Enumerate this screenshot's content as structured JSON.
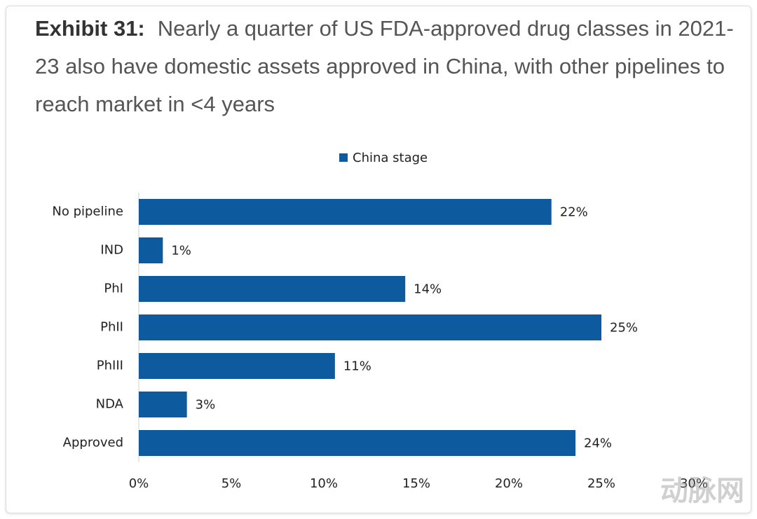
{
  "chart_data": {
    "type": "barh",
    "title_label": "Exhibit 31:",
    "title": "Nearly a quarter of US FDA-approved drug classes in 2021-23 also have domestic assets approved in China, with other pipelines to reach market in <4 years",
    "categories": [
      "No pipeline",
      "IND",
      "PhI",
      "PhII",
      "PhIII",
      "NDA",
      "Approved"
    ],
    "series": [
      {
        "name": "China stage",
        "color": "#0e5a9e",
        "values": [
          22.3,
          1.3,
          14.4,
          25,
          10.6,
          2.6,
          23.6
        ],
        "value_labels": [
          "22%",
          "1%",
          "14%",
          "25%",
          "11%",
          "3%",
          "24%"
        ]
      }
    ],
    "xlim": [
      0,
      30
    ],
    "xticks": [
      {
        "value": 0,
        "label": "0%"
      },
      {
        "value": 5,
        "label": "5%"
      },
      {
        "value": 10,
        "label": "10%"
      },
      {
        "value": 15,
        "label": "15%"
      },
      {
        "value": 20,
        "label": "20%"
      },
      {
        "value": 25,
        "label": "25%"
      },
      {
        "value": 30,
        "label": "30%"
      }
    ],
    "grid": false,
    "legend": "top",
    "watermark": "动脉网"
  }
}
